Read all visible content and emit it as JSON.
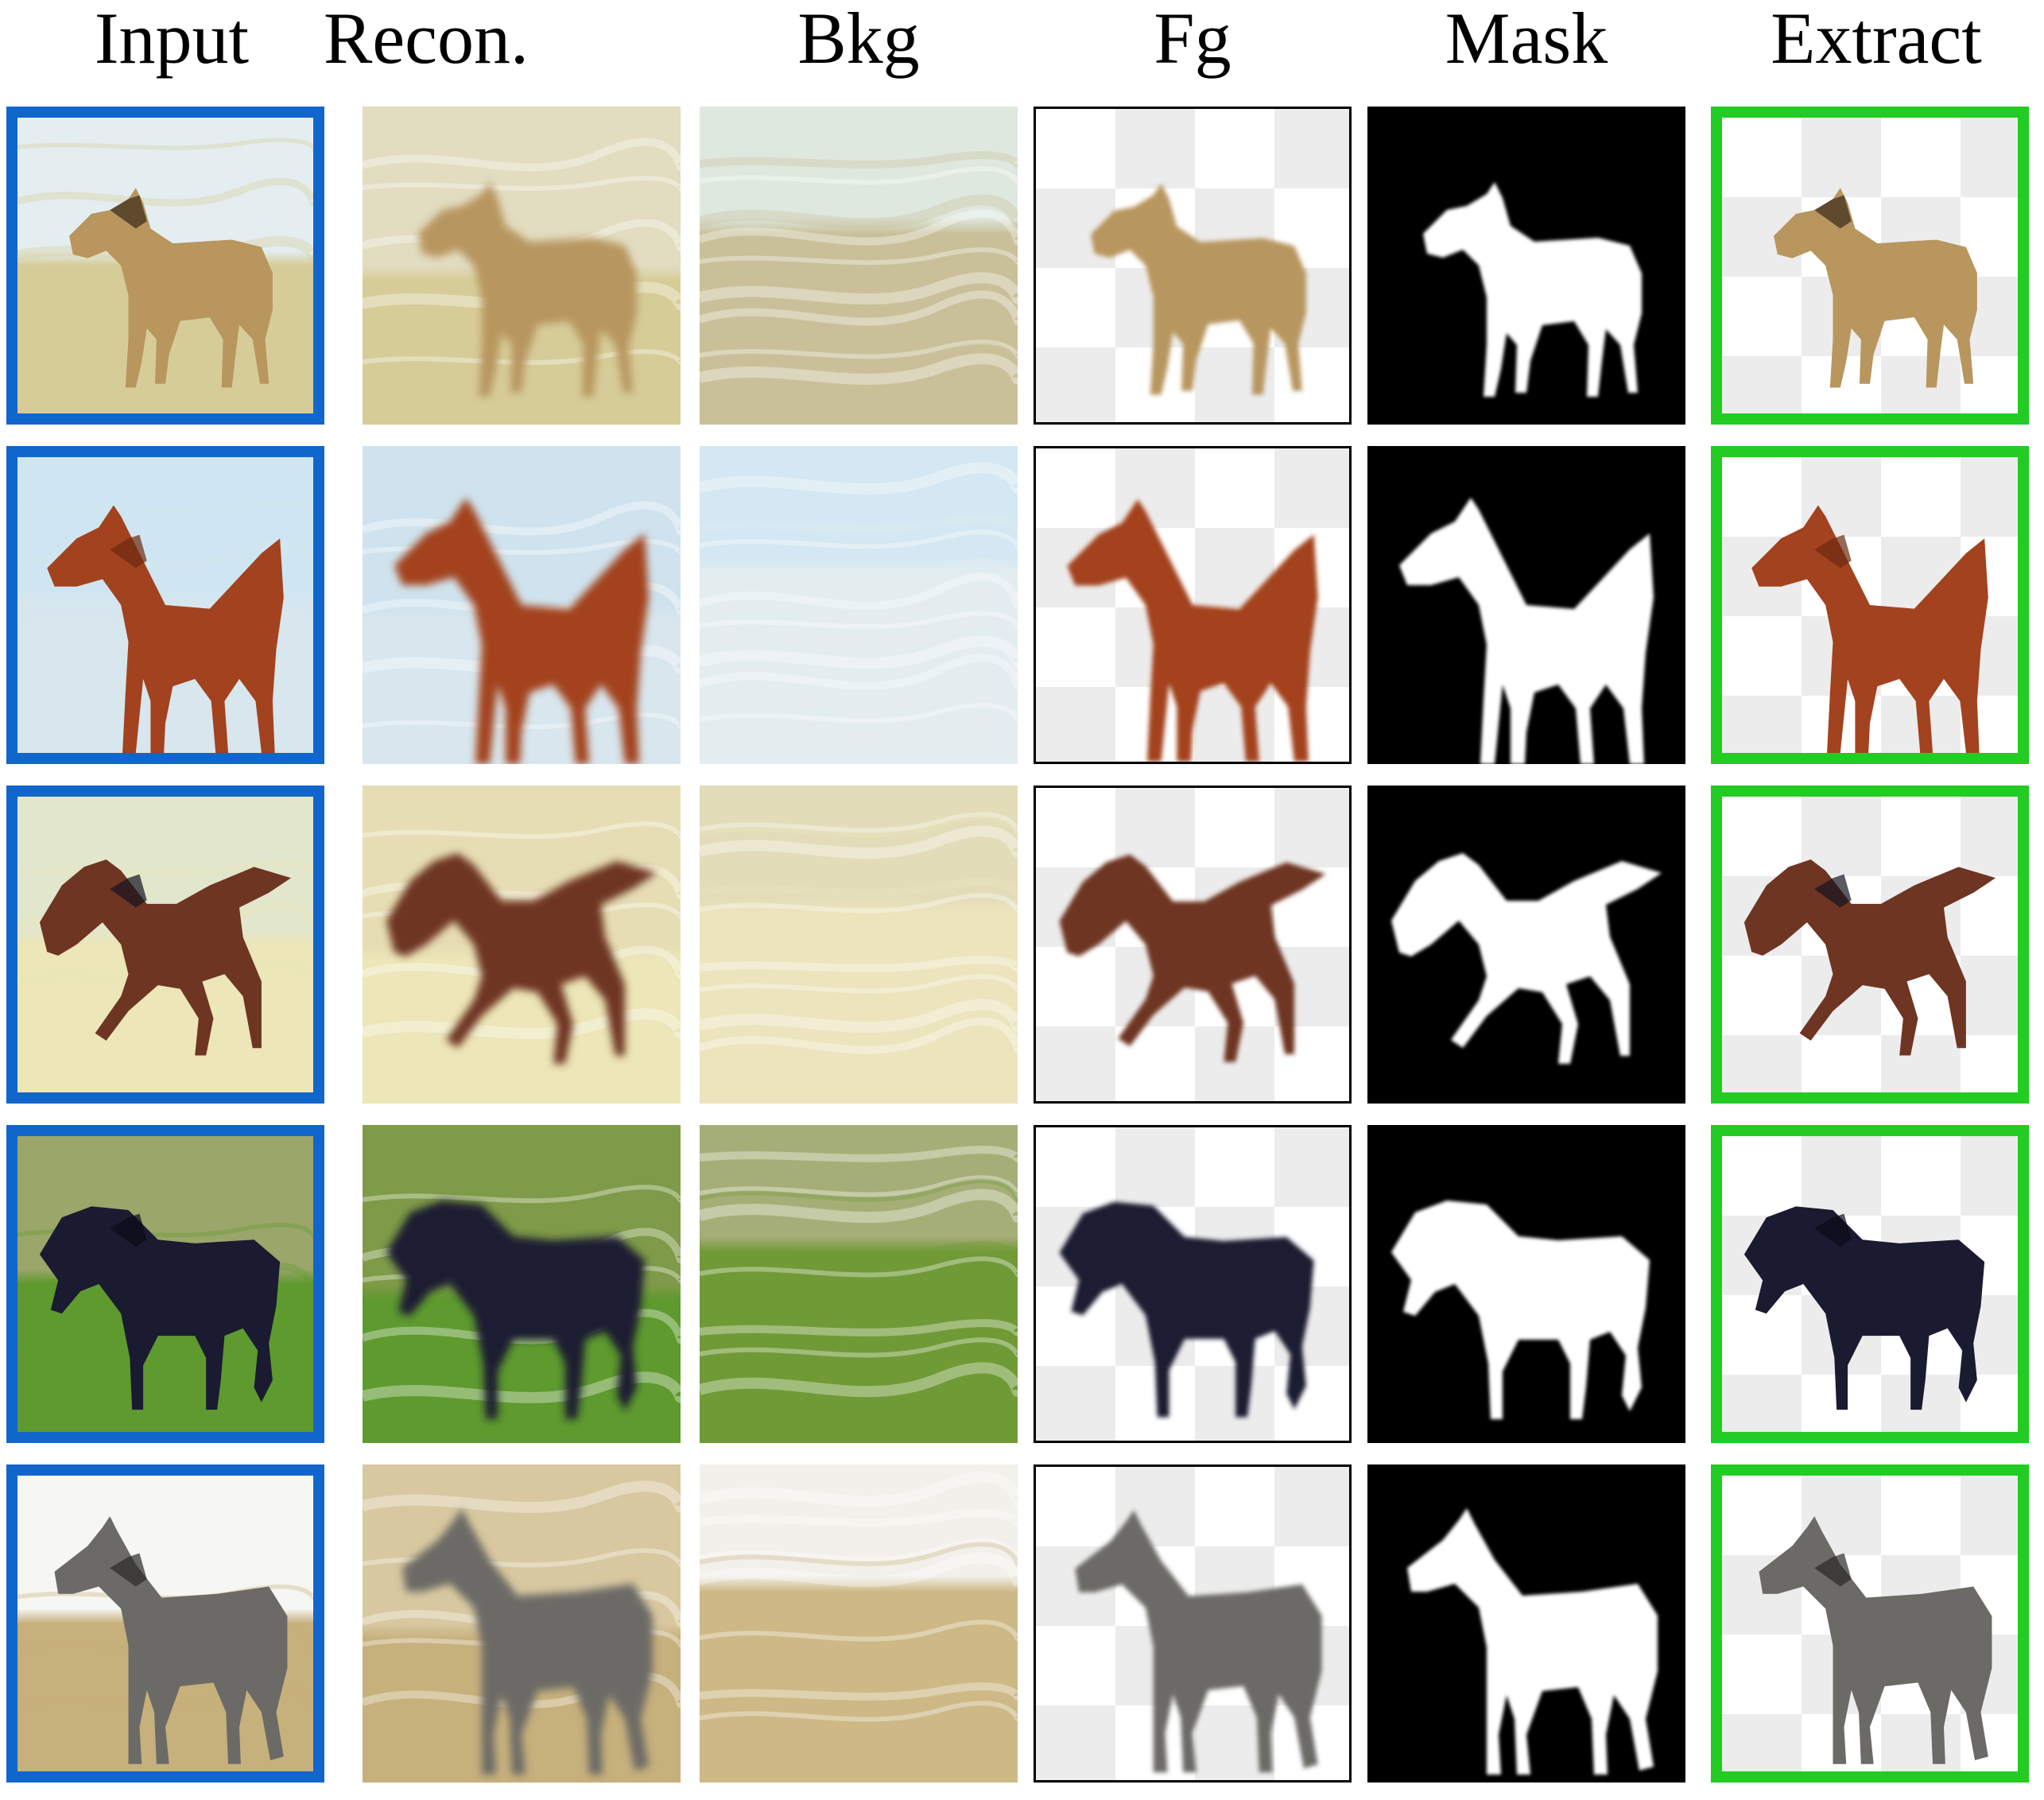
{
  "figure": {
    "columns": [
      {
        "id": "input",
        "label": "Input",
        "frame_color": "#1166cc"
      },
      {
        "id": "recon",
        "label": "Recon."
      },
      {
        "id": "bkg",
        "label": "Bkg"
      },
      {
        "id": "fg",
        "label": "Fg"
      },
      {
        "id": "mask",
        "label": "Mask"
      },
      {
        "id": "extract",
        "label": "Extract",
        "frame_color": "#22cc22"
      }
    ],
    "rows": [
      {
        "horse": "buckskin-horse",
        "horse_color": "#b8965e",
        "mane_color": "#3a2a1a",
        "leg_color": "#2a1f15",
        "scene": "pale-sky-dry-grass",
        "sky": "#e4eef0",
        "ground": "#d6cc98",
        "recon_bg": "#e2dcc0",
        "bkg_top": "#dfe8df",
        "bkg_bottom": "#c9c09a"
      },
      {
        "horse": "chestnut-horse",
        "horse_color": "#a3421e",
        "mane_color": "#6b2a10",
        "leg_color": "#5a2410",
        "scene": "blue-sky",
        "sky": "#cfe6f2",
        "ground": "#d8e6ee",
        "recon_bg": "#cfe3ee",
        "bkg_top": "#d3e8f2",
        "bkg_bottom": "#e3edf0"
      },
      {
        "horse": "bay-horse-galloping",
        "horse_color": "#6e3522",
        "mane_color": "#141420",
        "leg_color": "#1e1a1a",
        "scene": "pale-meadow",
        "sky": "#e2e6cc",
        "ground": "#ece6b8",
        "recon_bg": "#e6ddb4",
        "bkg_top": "#e2dcb8",
        "bkg_bottom": "#ece4bc"
      },
      {
        "horse": "black-horse",
        "horse_color": "#1a1a30",
        "mane_color": "#0c0c18",
        "leg_color": "#101020",
        "scene": "green-field",
        "sky": "#9aa66a",
        "ground": "#5e9a2e",
        "recon_bg": "#7f9a48",
        "bkg_top": "#a6ae78",
        "bkg_bottom": "#6f9a36"
      },
      {
        "horse": "dapple-grey-horse",
        "horse_color": "#6c6a66",
        "mane_color": "#2a2a2a",
        "leg_color": "#3a3a3a",
        "scene": "sandy-paddock",
        "sky": "#f6f6f2",
        "ground": "#c6b07c",
        "recon_bg": "#d8c8a0",
        "bkg_top": "#f2f0ea",
        "bkg_bottom": "#cdb886"
      }
    ]
  }
}
